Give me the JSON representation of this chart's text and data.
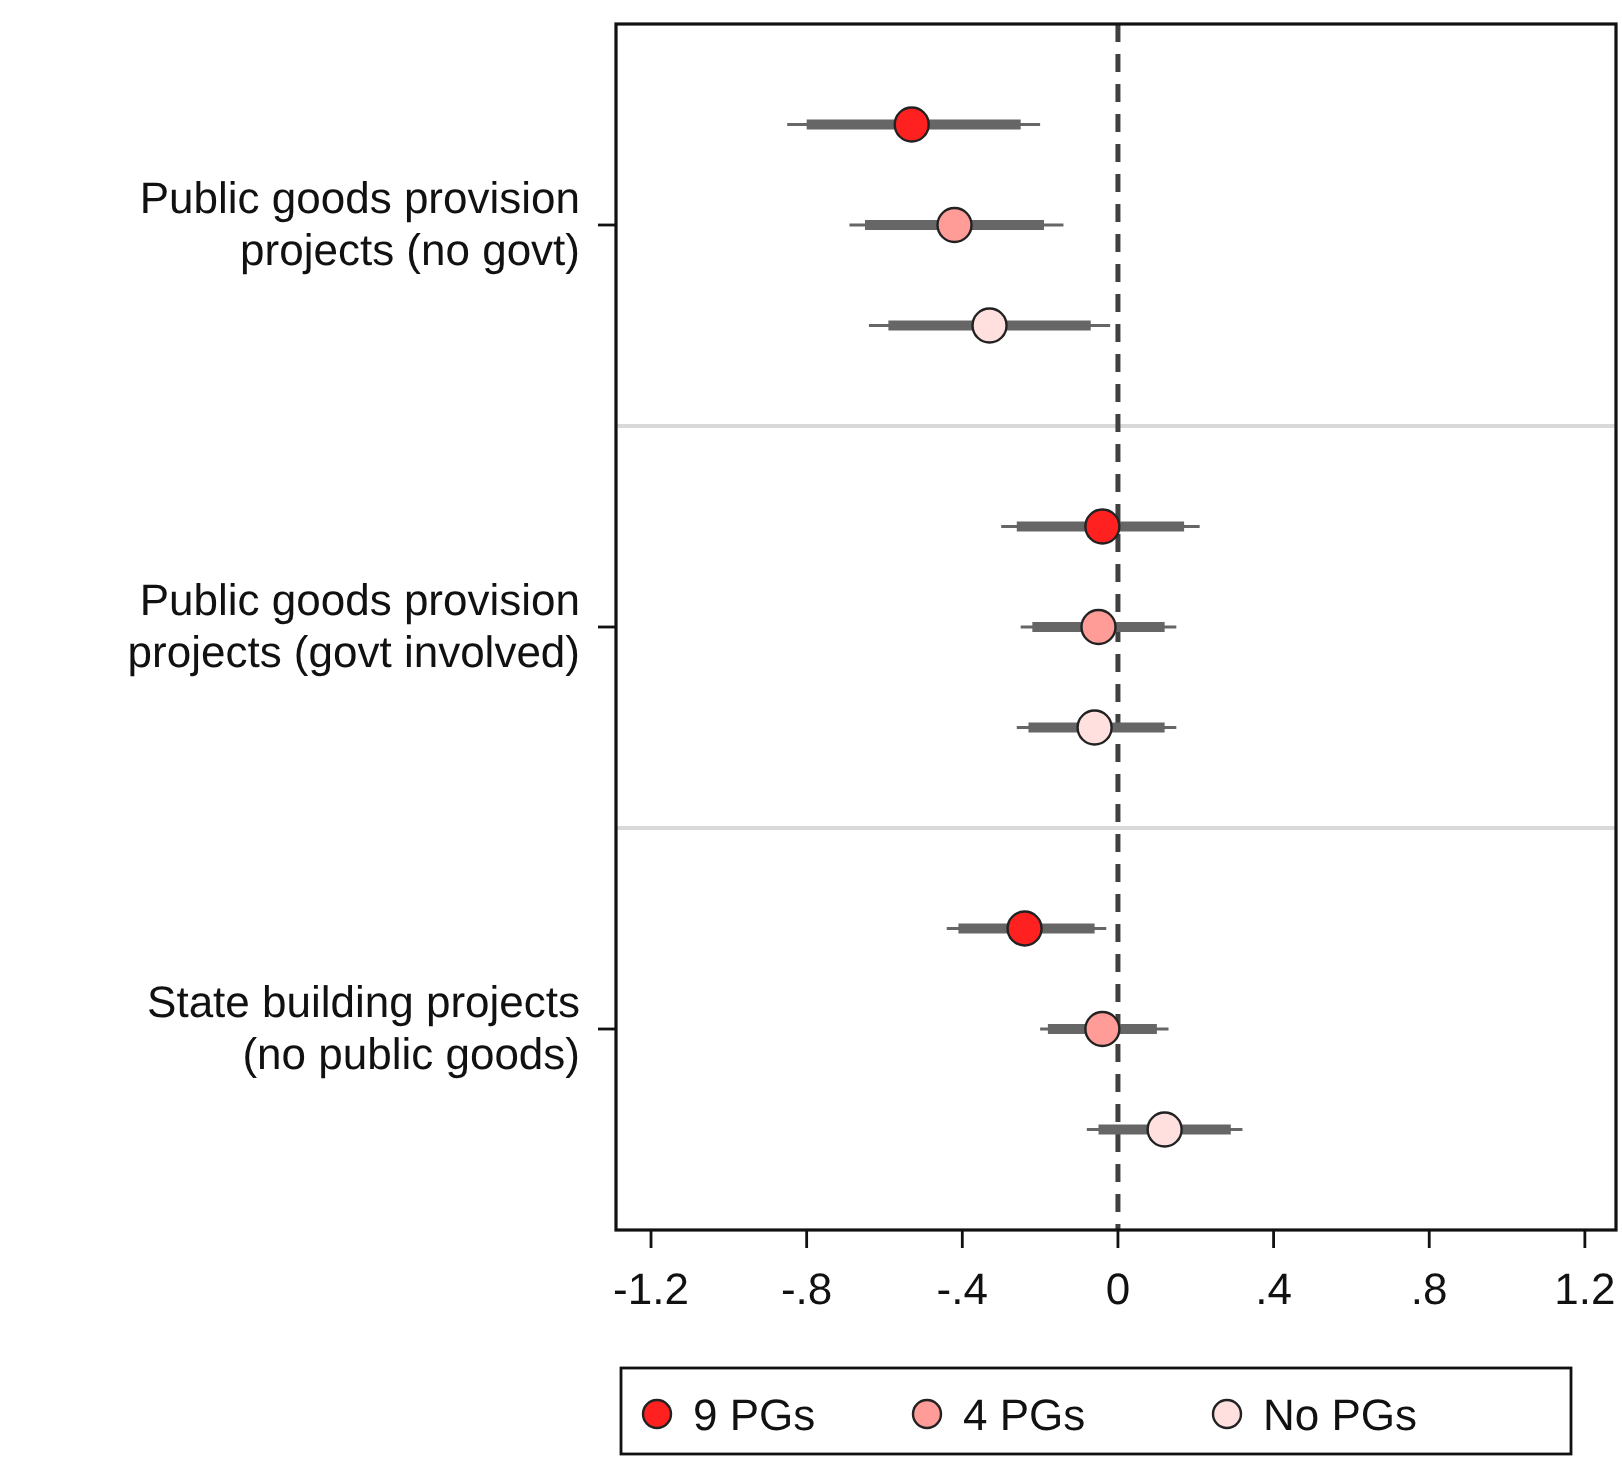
{
  "chart_data": {
    "type": "box",
    "orientation": "horizontal",
    "categories": [
      "Public goods provision projects (no govt)",
      "Public goods provision projects (govt involved)",
      "State building projects (no public goods)"
    ],
    "series": [
      {
        "color": "#666666",
        "boxes": [
          {
            "low": -0.85,
            "q1": -0.8,
            "median": -0.53,
            "q3": -0.25,
            "high": -0.2
          },
          {
            "low": -0.3,
            "q1": -0.26,
            "median": -0.04,
            "q3": 0.17,
            "high": 0.21
          },
          {
            "low": -0.44,
            "q1": -0.41,
            "median": -0.24,
            "q3": -0.06,
            "high": -0.03
          }
        ]
      },
      {
        "color": "#666666",
        "boxes": [
          {
            "low": -0.69,
            "q1": -0.65,
            "median": -0.42,
            "q3": -0.19,
            "high": -0.14
          },
          {
            "low": -0.25,
            "q1": -0.22,
            "median": -0.05,
            "q3": 0.12,
            "high": 0.15
          },
          {
            "low": -0.2,
            "q1": -0.18,
            "median": -0.04,
            "q3": 0.1,
            "high": 0.13
          }
        ]
      },
      {
        "color": "#666666",
        "boxes": [
          {
            "low": -0.64,
            "q1": -0.59,
            "median": -0.33,
            "q3": -0.07,
            "high": -0.02
          },
          {
            "low": -0.26,
            "q1": -0.23,
            "median": -0.06,
            "q3": 0.12,
            "high": 0.15
          },
          {
            "low": -0.08,
            "q1": -0.05,
            "median": 0.12,
            "q3": 0.29,
            "high": 0.32
          }
        ]
      },
      {
        "type": "scatter",
        "name": "9 PGs",
        "color": "#ff2020",
        "x": [
          "Public goods provision projects (no govt)",
          "Public goods provision projects (govt involved)",
          "State building projects (no public goods)"
        ],
        "values": [
          -0.53,
          -0.04,
          -0.24
        ]
      },
      {
        "type": "scatter",
        "name": "4 PGs",
        "color": "#ff9c98",
        "x": [
          "Public goods provision projects (no govt)",
          "Public goods provision projects (govt involved)",
          "State building projects (no public goods)"
        ],
        "values": [
          -0.42,
          -0.05,
          -0.04
        ]
      },
      {
        "type": "scatter",
        "name": "No PGs",
        "color": "#ffe0de",
        "x": [
          "Public goods provision projects (no govt)",
          "Public goods provision projects (govt involved)",
          "State building projects (no public goods)"
        ],
        "values": [
          -0.33,
          -0.06,
          0.12
        ]
      }
    ],
    "xlim": [
      -1.29,
      1.28
    ],
    "xticks": [
      {
        "value": -1.2,
        "label": "-1.2"
      },
      {
        "value": -0.8,
        "label": "-.8"
      },
      {
        "value": -0.4,
        "label": "-.4"
      },
      0,
      {
        "value": 0.4,
        "label": ".4"
      },
      {
        "value": 0.8,
        "label": ".8"
      },
      {
        "value": 1.2,
        "label": "1.2"
      }
    ],
    "ref_lines": [
      {
        "axis": "x",
        "value": 0,
        "line_style": "dashed",
        "color": "#404040"
      }
    ],
    "grid": "y",
    "legend": "bottom",
    "marker": "circle"
  }
}
